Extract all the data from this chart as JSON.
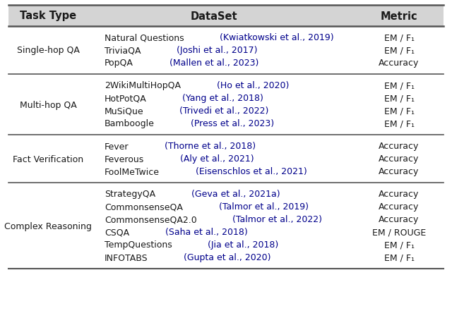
{
  "header": [
    "Task Type",
    "DataSet",
    "Metric"
  ],
  "rows": [
    {
      "task": "Single-hop QA",
      "datasets": [
        {
          "name": "Natural Questions",
          "cite": " (Kwiatkowski et al., 2019)",
          "metric": "EM / F₁"
        },
        {
          "name": "TriviaQA",
          "cite": " (Joshi et al., 2017)",
          "metric": "EM / F₁"
        },
        {
          "name": "PopQA",
          "cite": " (Mallen et al., 2023)",
          "metric": "Accuracy"
        }
      ]
    },
    {
      "task": "Multi-hop QA",
      "datasets": [
        {
          "name": "2WikiMultiHopQA",
          "cite": " (Ho et al., 2020)",
          "metric": "EM / F₁"
        },
        {
          "name": "HotPotQA",
          "cite": " (Yang et al., 2018)",
          "metric": "EM / F₁"
        },
        {
          "name": "MuSiQue",
          "cite": " (Trivedi et al., 2022)",
          "metric": "EM / F₁"
        },
        {
          "name": "Bamboogle",
          "cite": " (Press et al., 2023)",
          "metric": "EM / F₁"
        }
      ]
    },
    {
      "task": "Fact Verification",
      "datasets": [
        {
          "name": "Fever",
          "cite": " (Thorne et al., 2018)",
          "metric": "Accuracy"
        },
        {
          "name": "Feverous",
          "cite": " (Aly et al., 2021)",
          "metric": "Accuracy"
        },
        {
          "name": "FoolMeTwice",
          "cite": " (Eisenschlos et al., 2021)",
          "metric": "Accuracy"
        }
      ]
    },
    {
      "task": "Complex Reasoning",
      "datasets": [
        {
          "name": "StrategyQA",
          "cite": " (Geva et al., 2021a)",
          "metric": "Accuracy"
        },
        {
          "name": "CommonsenseQA",
          "cite": " (Talmor et al., 2019)",
          "metric": "Accuracy"
        },
        {
          "name": "CommonsenseQA2.0",
          "cite": " (Talmor et al., 2022)",
          "metric": "Accuracy"
        },
        {
          "name": "CSQA",
          "cite": " (Saha et al., 2018)",
          "metric": "EM / ROUGE"
        },
        {
          "name": "TempQuestions",
          "cite": " (Jia et al., 2018)",
          "metric": "EM / F₁"
        },
        {
          "name": "INFOTABS",
          "cite": " (Gupta et al., 2020)",
          "metric": "EM / F₁"
        }
      ]
    }
  ],
  "header_bg": "#d4d4d4",
  "cite_color": "#00008B",
  "text_color": "#1a1a1a",
  "line_color": "#555555",
  "header_fontsize": 10.5,
  "body_fontsize": 9.0,
  "fig_width": 6.4,
  "fig_height": 4.52,
  "dpi": 100
}
